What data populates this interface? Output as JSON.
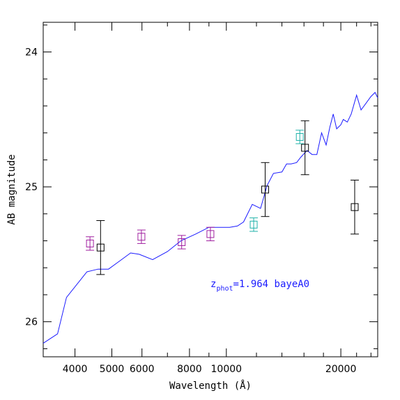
{
  "chart_data": {
    "type": "scatter",
    "title": "",
    "xlabel": "Wavelength (Å)",
    "ylabel": "AB magnitude",
    "xscale": "log",
    "xlim": [
      3300,
      25000
    ],
    "ylim": [
      26.26,
      23.78
    ],
    "y_inverted": true,
    "grid": false,
    "x_ticks": [
      4000,
      5000,
      6000,
      8000,
      10000,
      20000
    ],
    "x_tick_labels": [
      "4000",
      "5000",
      "6000",
      "8000",
      "10000",
      "20000"
    ],
    "y_ticks": [
      24,
      25,
      26
    ],
    "y_tick_labels": [
      "24",
      "25",
      "26"
    ],
    "annotation": {
      "base": "z",
      "subscript": "phot",
      "text": "=1.964 bayeA0",
      "color": "#1a1aff"
    },
    "series": [
      {
        "kind": "line",
        "color": "#1a1aff",
        "x": [
          3300,
          3600,
          3800,
          4300,
          4600,
          4900,
          5300,
          5600,
          5900,
          6400,
          7000,
          7600,
          8300,
          9000,
          9600,
          10200,
          10700,
          11100,
          11700,
          12300,
          12800,
          13300,
          14000,
          14400,
          14800,
          15300,
          15700,
          16300,
          16800,
          17300,
          17800,
          18300,
          18700,
          19100,
          19500,
          20000,
          20300,
          20800,
          21300,
          22000,
          22600,
          23300,
          24000,
          24600,
          25000
        ],
        "y": [
          26.16,
          26.09,
          25.82,
          25.63,
          25.61,
          25.61,
          25.54,
          25.49,
          25.5,
          25.54,
          25.48,
          25.4,
          25.35,
          25.3,
          25.3,
          25.3,
          25.29,
          25.26,
          25.13,
          25.16,
          24.99,
          24.9,
          24.89,
          24.83,
          24.83,
          24.82,
          24.78,
          24.73,
          24.76,
          24.76,
          24.6,
          24.69,
          24.56,
          24.46,
          24.57,
          24.54,
          24.5,
          24.52,
          24.46,
          24.32,
          24.43,
          24.38,
          24.33,
          24.3,
          24.34
        ]
      },
      {
        "kind": "points",
        "color": "#000000",
        "x": [
          4670,
          12650,
          16100,
          21750
        ],
        "y": [
          25.45,
          25.02,
          24.71,
          25.15
        ],
        "err": [
          0.2,
          0.2,
          0.2,
          0.2
        ]
      },
      {
        "kind": "points",
        "color": "#a020a0",
        "x": [
          4380,
          5980,
          7630,
          9080
        ],
        "y": [
          25.42,
          25.37,
          25.41,
          25.35
        ],
        "err": [
          0.05,
          0.05,
          0.05,
          0.05
        ]
      },
      {
        "kind": "points",
        "color": "#20b2aa",
        "x": [
          11800,
          15600
        ],
        "y": [
          25.28,
          24.63
        ],
        "err": [
          0.05,
          0.05
        ]
      }
    ]
  }
}
